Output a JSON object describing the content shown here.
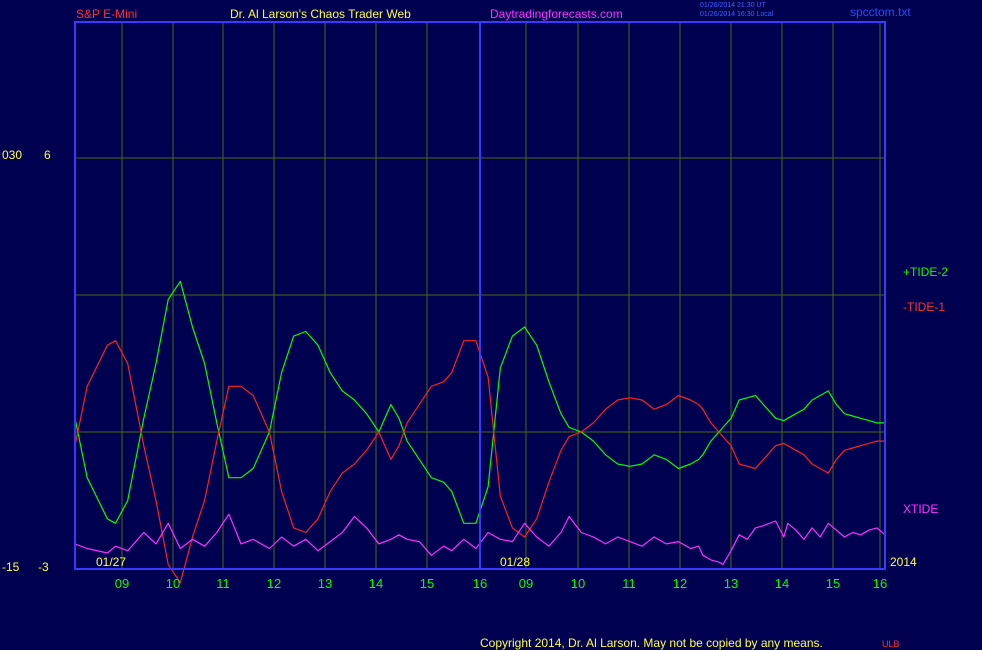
{
  "header": {
    "symbol": "S&P E-Mini",
    "author": "Dr. Al Larson's Chaos Trader Web",
    "site": "Daytradingforecasts.com",
    "stamp1": "01/26/2014 21:30 UT",
    "stamp2": "01/26/2014 16:30 Local",
    "file": "spcctom.txt"
  },
  "footer": {
    "copyright": "Copyright 2014, Dr. Al Larson. May not be copied by any means.",
    "mark": "ULB"
  },
  "colors": {
    "background": "#000050",
    "frame": "#3a3aff",
    "grid": "#4a6a10",
    "tide2": "#00ff00",
    "tide1": "#ff2020",
    "xtide": "#ff30ff",
    "axis_text": "#ffff00",
    "hour_text": "#00ff00"
  },
  "chart_data": {
    "type": "line",
    "title": "",
    "xlabel": "",
    "ylabel": "",
    "x_tick_labels": [
      "09",
      "10",
      "11",
      "12",
      "13",
      "14",
      "15",
      "16",
      "09",
      "10",
      "11",
      "12",
      "13",
      "14",
      "15",
      "16"
    ],
    "date_labels": [
      "01/27",
      "01/28"
    ],
    "year_label": "2014",
    "y_left_labels": [
      {
        "outer": "030",
        "inner": "6"
      },
      {
        "outer": "-15",
        "inner": "-3"
      }
    ],
    "grid": true,
    "series": [
      {
        "name": "+TIDE-2",
        "color": "#00ff00",
        "x": [
          8.0,
          8.3,
          8.8,
          9.0,
          9.3,
          9.7,
          10.0,
          10.3,
          10.6,
          10.9,
          11.2,
          11.5,
          11.8,
          12.1,
          12.4,
          12.8,
          13.1,
          13.4,
          13.7,
          14.0,
          14.3,
          14.6,
          14.9,
          15.2,
          15.5,
          15.8,
          16.0,
          16.2,
          16.5,
          16.8,
          17.1,
          17.3,
          17.6,
          17.9,
          18.2,
          18.5,
          18.8,
          19.1,
          19.4,
          19.7,
          20.0,
          20.2,
          20.5,
          20.8,
          21.1,
          21.4,
          21.7,
          22.0,
          22.3,
          22.6,
          22.9,
          23.2,
          23.4,
          23.5,
          23.7,
          23.9,
          24.0,
          24.2,
          24.4,
          24.6,
          24.8,
          25.0,
          25.3,
          25.5,
          25.6,
          25.8,
          26.0,
          26.2,
          26.4,
          26.6,
          26.8,
          27.0,
          27.2,
          27.4,
          27.6,
          27.8,
          28.0
        ],
        "values": [
          0.3,
          -1.0,
          -1.9,
          -2.0,
          -1.5,
          0.3,
          1.5,
          2.9,
          3.3,
          2.3,
          1.5,
          0.2,
          -1.0,
          -1.0,
          -0.8,
          0.0,
          1.3,
          2.1,
          2.2,
          1.9,
          1.3,
          0.9,
          0.7,
          0.4,
          0.0,
          0.6,
          0.3,
          -0.2,
          -0.6,
          -1.0,
          -1.1,
          -1.3,
          -2.0,
          -2.0,
          -1.2,
          1.4,
          2.1,
          2.3,
          1.9,
          1.1,
          0.4,
          0.1,
          0.0,
          -0.2,
          -0.5,
          -0.7,
          -0.75,
          -0.7,
          -0.5,
          -0.6,
          -0.8,
          -0.7,
          -0.6,
          -0.5,
          -0.2,
          0.0,
          0.1,
          0.3,
          0.7,
          0.75,
          0.8,
          0.6,
          0.3,
          0.25,
          0.3,
          0.4,
          0.5,
          0.7,
          0.8,
          0.9,
          0.6,
          0.4,
          0.35,
          0.3,
          0.25,
          0.2,
          0.2
        ]
      },
      {
        "name": "-TIDE-1",
        "color": "#ff2020",
        "x": [
          8.0,
          8.3,
          8.8,
          9.0,
          9.3,
          9.7,
          10.0,
          10.3,
          10.6,
          10.9,
          11.2,
          11.5,
          11.8,
          12.1,
          12.4,
          12.8,
          13.1,
          13.4,
          13.7,
          14.0,
          14.3,
          14.6,
          14.9,
          15.2,
          15.5,
          15.8,
          16.0,
          16.2,
          16.5,
          16.8,
          17.1,
          17.3,
          17.6,
          17.9,
          18.2,
          18.5,
          18.8,
          19.1,
          19.4,
          19.7,
          20.0,
          20.2,
          20.5,
          20.8,
          21.1,
          21.4,
          21.7,
          22.0,
          22.3,
          22.6,
          22.9,
          23.2,
          23.4,
          23.5,
          23.7,
          23.9,
          24.0,
          24.2,
          24.4,
          24.6,
          24.8,
          25.0,
          25.3,
          25.5,
          25.6,
          25.8,
          26.0,
          26.2,
          26.4,
          26.6,
          26.8,
          27.0,
          27.2,
          27.4,
          27.6,
          27.8,
          28.0
        ],
        "values": [
          -0.3,
          1.0,
          1.9,
          2.0,
          1.5,
          -0.3,
          -1.5,
          -2.9,
          -3.3,
          -2.3,
          -1.5,
          -0.2,
          1.0,
          1.0,
          0.8,
          0.0,
          -1.3,
          -2.1,
          -2.2,
          -1.9,
          -1.3,
          -0.9,
          -0.7,
          -0.4,
          0.0,
          -0.6,
          -0.3,
          0.2,
          0.6,
          1.0,
          1.1,
          1.3,
          2.0,
          2.0,
          1.2,
          -1.4,
          -2.1,
          -2.3,
          -1.9,
          -1.1,
          -0.4,
          -0.1,
          0.0,
          0.2,
          0.5,
          0.7,
          0.75,
          0.7,
          0.5,
          0.6,
          0.8,
          0.7,
          0.6,
          0.5,
          0.2,
          0.0,
          -0.1,
          -0.3,
          -0.7,
          -0.75,
          -0.8,
          -0.6,
          -0.3,
          -0.25,
          -0.3,
          -0.4,
          -0.5,
          -0.7,
          -0.8,
          -0.9,
          -0.6,
          -0.4,
          -0.35,
          -0.3,
          -0.25,
          -0.2,
          -0.2
        ]
      },
      {
        "name": "XTIDE",
        "color": "#ff30ff",
        "x": [
          8.0,
          8.3,
          8.8,
          9.0,
          9.3,
          9.7,
          10.0,
          10.3,
          10.6,
          10.9,
          11.2,
          11.5,
          11.8,
          12.1,
          12.4,
          12.8,
          13.1,
          13.4,
          13.7,
          14.0,
          14.3,
          14.6,
          14.9,
          15.2,
          15.5,
          15.8,
          16.0,
          16.2,
          16.5,
          16.8,
          17.1,
          17.3,
          17.6,
          17.9,
          18.2,
          18.5,
          18.8,
          19.1,
          19.4,
          19.7,
          20.0,
          20.2,
          20.5,
          20.8,
          21.1,
          21.4,
          21.7,
          22.0,
          22.3,
          22.6,
          22.9,
          23.2,
          23.4,
          23.5,
          23.7,
          23.9,
          24.0,
          24.2,
          24.4,
          24.6,
          24.8,
          25.0,
          25.3,
          25.5,
          25.6,
          25.8,
          26.0,
          26.2,
          26.4,
          26.6,
          26.8,
          27.0,
          27.2,
          27.4,
          27.6,
          27.8,
          28.0
        ],
        "values": [
          -2.45,
          -2.55,
          -2.65,
          -2.5,
          -2.6,
          -2.2,
          -2.45,
          -2.0,
          -2.55,
          -2.35,
          -2.5,
          -2.2,
          -1.8,
          -2.45,
          -2.35,
          -2.55,
          -2.3,
          -2.5,
          -2.35,
          -2.6,
          -2.4,
          -2.2,
          -1.85,
          -2.1,
          -2.45,
          -2.35,
          -2.25,
          -2.35,
          -2.4,
          -2.7,
          -2.5,
          -2.6,
          -2.35,
          -2.55,
          -2.2,
          -2.35,
          -2.4,
          -2.0,
          -2.3,
          -2.5,
          -2.2,
          -1.85,
          -2.2,
          -2.3,
          -2.45,
          -2.3,
          -2.4,
          -2.5,
          -2.3,
          -2.45,
          -2.4,
          -2.55,
          -2.5,
          -2.7,
          -2.8,
          -2.85,
          -2.9,
          -2.6,
          -2.25,
          -2.35,
          -2.1,
          -2.05,
          -1.95,
          -2.3,
          -2.0,
          -2.15,
          -2.35,
          -2.1,
          -2.3,
          -2.0,
          -2.15,
          -2.3,
          -2.2,
          -2.25,
          -2.15,
          -2.1,
          -2.25
        ]
      }
    ],
    "x_range": [
      8.0,
      28.0
    ],
    "ylim": [
      -3,
      6
    ]
  }
}
